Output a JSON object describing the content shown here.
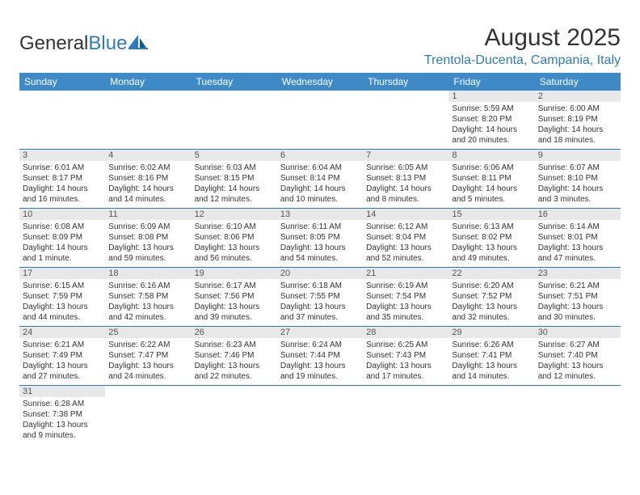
{
  "logo": {
    "text1": "General",
    "text2": "Blue"
  },
  "title": "August 2025",
  "location": "Trentola-Ducenta, Campania, Italy",
  "colors": {
    "header_bg": "#3d8ac7",
    "accent": "#2c7bc0",
    "daynum_bg": "#e8e8e8",
    "text": "#333333",
    "page_bg": "#ffffff"
  },
  "typography": {
    "title_fontsize": 30,
    "location_fontsize": 16,
    "header_fontsize": 12,
    "daynum_fontsize": 11,
    "body_fontsize": 10
  },
  "day_headers": [
    "Sunday",
    "Monday",
    "Tuesday",
    "Wednesday",
    "Thursday",
    "Friday",
    "Saturday"
  ],
  "weeks": [
    [
      {
        "n": "",
        "sr": "",
        "ss": "",
        "dl": ""
      },
      {
        "n": "",
        "sr": "",
        "ss": "",
        "dl": ""
      },
      {
        "n": "",
        "sr": "",
        "ss": "",
        "dl": ""
      },
      {
        "n": "",
        "sr": "",
        "ss": "",
        "dl": ""
      },
      {
        "n": "",
        "sr": "",
        "ss": "",
        "dl": ""
      },
      {
        "n": "1",
        "sr": "Sunrise: 5:59 AM",
        "ss": "Sunset: 8:20 PM",
        "dl": "Daylight: 14 hours and 20 minutes."
      },
      {
        "n": "2",
        "sr": "Sunrise: 6:00 AM",
        "ss": "Sunset: 8:19 PM",
        "dl": "Daylight: 14 hours and 18 minutes."
      }
    ],
    [
      {
        "n": "3",
        "sr": "Sunrise: 6:01 AM",
        "ss": "Sunset: 8:17 PM",
        "dl": "Daylight: 14 hours and 16 minutes."
      },
      {
        "n": "4",
        "sr": "Sunrise: 6:02 AM",
        "ss": "Sunset: 8:16 PM",
        "dl": "Daylight: 14 hours and 14 minutes."
      },
      {
        "n": "5",
        "sr": "Sunrise: 6:03 AM",
        "ss": "Sunset: 8:15 PM",
        "dl": "Daylight: 14 hours and 12 minutes."
      },
      {
        "n": "6",
        "sr": "Sunrise: 6:04 AM",
        "ss": "Sunset: 8:14 PM",
        "dl": "Daylight: 14 hours and 10 minutes."
      },
      {
        "n": "7",
        "sr": "Sunrise: 6:05 AM",
        "ss": "Sunset: 8:13 PM",
        "dl": "Daylight: 14 hours and 8 minutes."
      },
      {
        "n": "8",
        "sr": "Sunrise: 6:06 AM",
        "ss": "Sunset: 8:11 PM",
        "dl": "Daylight: 14 hours and 5 minutes."
      },
      {
        "n": "9",
        "sr": "Sunrise: 6:07 AM",
        "ss": "Sunset: 8:10 PM",
        "dl": "Daylight: 14 hours and 3 minutes."
      }
    ],
    [
      {
        "n": "10",
        "sr": "Sunrise: 6:08 AM",
        "ss": "Sunset: 8:09 PM",
        "dl": "Daylight: 14 hours and 1 minute."
      },
      {
        "n": "11",
        "sr": "Sunrise: 6:09 AM",
        "ss": "Sunset: 8:08 PM",
        "dl": "Daylight: 13 hours and 59 minutes."
      },
      {
        "n": "12",
        "sr": "Sunrise: 6:10 AM",
        "ss": "Sunset: 8:06 PM",
        "dl": "Daylight: 13 hours and 56 minutes."
      },
      {
        "n": "13",
        "sr": "Sunrise: 6:11 AM",
        "ss": "Sunset: 8:05 PM",
        "dl": "Daylight: 13 hours and 54 minutes."
      },
      {
        "n": "14",
        "sr": "Sunrise: 6:12 AM",
        "ss": "Sunset: 8:04 PM",
        "dl": "Daylight: 13 hours and 52 minutes."
      },
      {
        "n": "15",
        "sr": "Sunrise: 6:13 AM",
        "ss": "Sunset: 8:02 PM",
        "dl": "Daylight: 13 hours and 49 minutes."
      },
      {
        "n": "16",
        "sr": "Sunrise: 6:14 AM",
        "ss": "Sunset: 8:01 PM",
        "dl": "Daylight: 13 hours and 47 minutes."
      }
    ],
    [
      {
        "n": "17",
        "sr": "Sunrise: 6:15 AM",
        "ss": "Sunset: 7:59 PM",
        "dl": "Daylight: 13 hours and 44 minutes."
      },
      {
        "n": "18",
        "sr": "Sunrise: 6:16 AM",
        "ss": "Sunset: 7:58 PM",
        "dl": "Daylight: 13 hours and 42 minutes."
      },
      {
        "n": "19",
        "sr": "Sunrise: 6:17 AM",
        "ss": "Sunset: 7:56 PM",
        "dl": "Daylight: 13 hours and 39 minutes."
      },
      {
        "n": "20",
        "sr": "Sunrise: 6:18 AM",
        "ss": "Sunset: 7:55 PM",
        "dl": "Daylight: 13 hours and 37 minutes."
      },
      {
        "n": "21",
        "sr": "Sunrise: 6:19 AM",
        "ss": "Sunset: 7:54 PM",
        "dl": "Daylight: 13 hours and 35 minutes."
      },
      {
        "n": "22",
        "sr": "Sunrise: 6:20 AM",
        "ss": "Sunset: 7:52 PM",
        "dl": "Daylight: 13 hours and 32 minutes."
      },
      {
        "n": "23",
        "sr": "Sunrise: 6:21 AM",
        "ss": "Sunset: 7:51 PM",
        "dl": "Daylight: 13 hours and 30 minutes."
      }
    ],
    [
      {
        "n": "24",
        "sr": "Sunrise: 6:21 AM",
        "ss": "Sunset: 7:49 PM",
        "dl": "Daylight: 13 hours and 27 minutes."
      },
      {
        "n": "25",
        "sr": "Sunrise: 6:22 AM",
        "ss": "Sunset: 7:47 PM",
        "dl": "Daylight: 13 hours and 24 minutes."
      },
      {
        "n": "26",
        "sr": "Sunrise: 6:23 AM",
        "ss": "Sunset: 7:46 PM",
        "dl": "Daylight: 13 hours and 22 minutes."
      },
      {
        "n": "27",
        "sr": "Sunrise: 6:24 AM",
        "ss": "Sunset: 7:44 PM",
        "dl": "Daylight: 13 hours and 19 minutes."
      },
      {
        "n": "28",
        "sr": "Sunrise: 6:25 AM",
        "ss": "Sunset: 7:43 PM",
        "dl": "Daylight: 13 hours and 17 minutes."
      },
      {
        "n": "29",
        "sr": "Sunrise: 6:26 AM",
        "ss": "Sunset: 7:41 PM",
        "dl": "Daylight: 13 hours and 14 minutes."
      },
      {
        "n": "30",
        "sr": "Sunrise: 6:27 AM",
        "ss": "Sunset: 7:40 PM",
        "dl": "Daylight: 13 hours and 12 minutes."
      }
    ],
    [
      {
        "n": "31",
        "sr": "Sunrise: 6:28 AM",
        "ss": "Sunset: 7:38 PM",
        "dl": "Daylight: 13 hours and 9 minutes."
      },
      {
        "n": "",
        "sr": "",
        "ss": "",
        "dl": ""
      },
      {
        "n": "",
        "sr": "",
        "ss": "",
        "dl": ""
      },
      {
        "n": "",
        "sr": "",
        "ss": "",
        "dl": ""
      },
      {
        "n": "",
        "sr": "",
        "ss": "",
        "dl": ""
      },
      {
        "n": "",
        "sr": "",
        "ss": "",
        "dl": ""
      },
      {
        "n": "",
        "sr": "",
        "ss": "",
        "dl": ""
      }
    ]
  ]
}
